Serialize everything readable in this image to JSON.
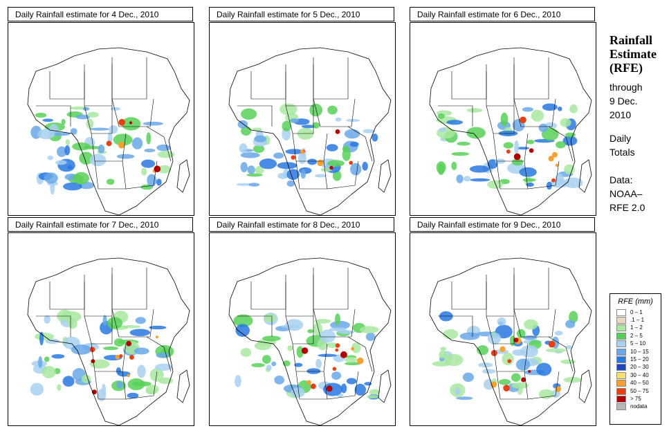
{
  "panels": [
    {
      "title": "Daily Rainfall estimate for  4 Dec., 2010"
    },
    {
      "title": "Daily Rainfall estimate for  5 Dec., 2010"
    },
    {
      "title": "Daily Rainfall estimate for  6 Dec., 2010"
    },
    {
      "title": "Daily Rainfall estimate for  7 Dec., 2010"
    },
    {
      "title": "Daily Rainfall estimate for  8 Dec., 2010"
    },
    {
      "title": "Daily Rainfall estimate for  9 Dec., 2010"
    }
  ],
  "side": {
    "title_line1": "Rainfall",
    "title_line2": "Estimate",
    "title_line3": "(RFE)",
    "through": "through",
    "date_line1": "9 Dec.",
    "date_line2": "2010",
    "totals_line1": "Daily",
    "totals_line2": "Totals",
    "data_line1": "Data:",
    "data_line2": "NOAA–",
    "data_line3": "RFE 2.0"
  },
  "legend": {
    "title": "RFE (mm)",
    "items": [
      {
        "label": "0 – 1",
        "color": "#ffffff"
      },
      {
        "label": ".1 – 1",
        "color": "#e8d8c0"
      },
      {
        "label": "1 – 2",
        "color": "#a8e8a0"
      },
      {
        "label": "2 – 5",
        "color": "#58d058"
      },
      {
        "label": "5 – 10",
        "color": "#a8d0f0"
      },
      {
        "label": "10 – 15",
        "color": "#68a8e8"
      },
      {
        "label": "15 – 20",
        "color": "#2878e0"
      },
      {
        "label": "20 – 30",
        "color": "#1848c0"
      },
      {
        "label": "30 – 40",
        "color": "#f8e070"
      },
      {
        "label": "40 – 50",
        "color": "#f8a030"
      },
      {
        "label": "50 – 75",
        "color": "#e84010"
      },
      {
        "label": "> 75",
        "color": "#b00000"
      },
      {
        "label": "nodata",
        "color": "#b8b8b8"
      }
    ]
  }
}
